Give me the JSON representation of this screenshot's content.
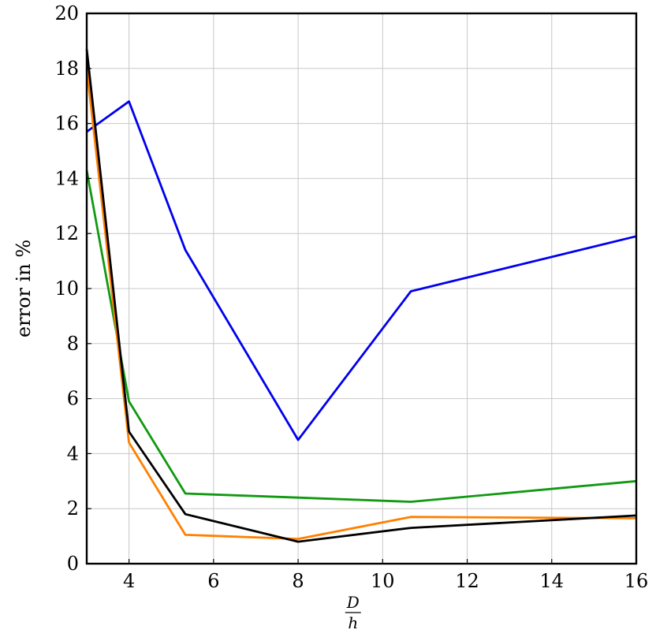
{
  "chart_data": {
    "type": "line",
    "title": "",
    "xlabel": {
      "numerator": "D",
      "denominator": "h"
    },
    "ylabel": "error in %",
    "xlim": [
      3,
      16
    ],
    "ylim": [
      0,
      20
    ],
    "xticks": [
      4,
      6,
      8,
      10,
      12,
      14,
      16
    ],
    "yticks": [
      0,
      2,
      4,
      6,
      8,
      10,
      12,
      14,
      16,
      18,
      20
    ],
    "grid": true,
    "legend": "none",
    "series": [
      {
        "color": "#0000ee",
        "x": [
          3,
          4,
          5.333,
          8,
          10.667,
          16
        ],
        "y": [
          15.7,
          16.8,
          11.4,
          4.5,
          9.9,
          11.9
        ]
      },
      {
        "color": "#119911",
        "x": [
          3,
          4,
          5.333,
          8,
          10.667,
          16
        ],
        "y": [
          14.3,
          5.9,
          2.55,
          2.4,
          2.25,
          3.0
        ]
      },
      {
        "color": "#ff8000",
        "x": [
          3,
          4,
          5.333,
          8,
          10.667,
          16
        ],
        "y": [
          18.0,
          4.4,
          1.05,
          0.9,
          1.7,
          1.65
        ]
      },
      {
        "color": "#000000",
        "x": [
          3,
          4,
          5.333,
          8,
          10.667,
          16
        ],
        "y": [
          18.7,
          4.8,
          1.8,
          0.8,
          1.3,
          1.75
        ]
      }
    ]
  }
}
